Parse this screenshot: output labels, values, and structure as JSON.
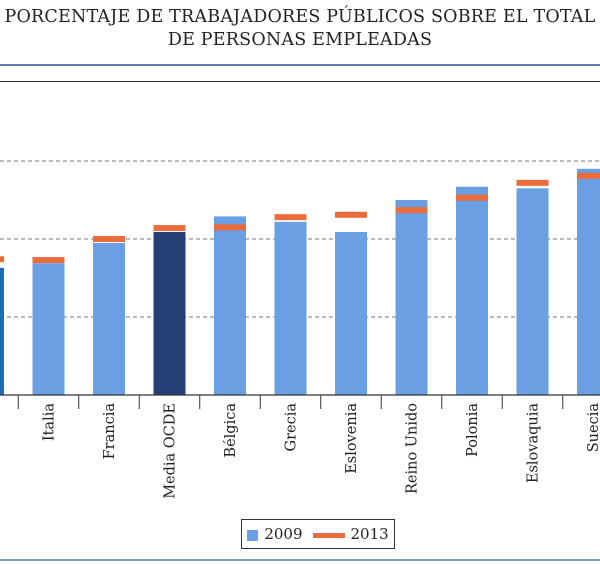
{
  "chart_data": {
    "type": "bar",
    "title": "PORCENTAJE DE TRABAJADORES PÚBLICOS SOBRE EL TOTAL DE PERSONAS EMPLEADAS",
    "title_lines": [
      "PORCENTAJE DE TRABAJADORES PÚBLICOS SOBRE EL TOTAL",
      "DE PERSONAS EMPLEADAS"
    ],
    "xlabel": "",
    "ylabel": "",
    "ylim": [
      0,
      30
    ],
    "grid": true,
    "legend_position": "bottom-center",
    "categories": [
      "",
      "Italia",
      "Francia",
      "Media OCDE",
      "Bélgica",
      "Grecia",
      "Eslovenia",
      "Reino Unido",
      "Polonia",
      "Eslovaquia",
      "Suecia"
    ],
    "series": [
      {
        "name": "2009",
        "mark": "bar",
        "values": [
          16.3,
          16.9,
          19.5,
          20.9,
          22.9,
          22.2,
          20.9,
          25.0,
          26.7,
          26.5,
          29.0
        ]
      },
      {
        "name": "2013",
        "mark": "marker",
        "values": [
          17.4,
          17.3,
          20.0,
          21.4,
          21.5,
          22.8,
          23.1,
          23.7,
          25.3,
          27.2,
          28.1
        ]
      }
    ],
    "colors": {
      "2009": "#6aa0e3",
      "2013": "#ec6b3a",
      "highlight": "#233f74",
      "cut_bar": "#1c6cb8"
    },
    "highlight_category": "Media OCDE"
  }
}
